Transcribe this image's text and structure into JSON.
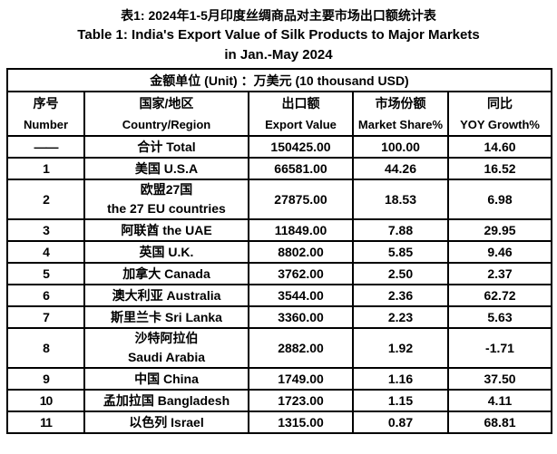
{
  "titles": {
    "zh": "表1: 2024年1-5月印度丝绸商品对主要市场出口额统计表",
    "en_line1": "Table 1: India's Export Value of Silk Products to Major Markets",
    "en_line2": "in Jan.-May 2024"
  },
  "table": {
    "unit_note": "金额单位 (Unit) ：万美元 (10 thousand USD)",
    "headers": [
      {
        "key": "number",
        "zh": "序号",
        "en": "Number"
      },
      {
        "key": "country",
        "zh": "国家/地区",
        "en": "Country/Region"
      },
      {
        "key": "export-value",
        "zh": "出口额",
        "en": "Export Value"
      },
      {
        "key": "market-share",
        "zh": "市场份额",
        "en": "Market Share%"
      },
      {
        "key": "yoy-growth",
        "zh": "同比",
        "en": "YOY Growth%"
      }
    ],
    "rows": [
      {
        "number": "——",
        "country": "合计 Total",
        "export_value": "150425.00",
        "market_share": "100.00",
        "yoy_growth": "14.60"
      },
      {
        "number": "1",
        "country": "美国 U.S.A",
        "export_value": "66581.00",
        "market_share": "44.26",
        "yoy_growth": "16.52"
      },
      {
        "number": "2",
        "country": "欧盟27国\nthe 27 EU countries",
        "export_value": "27875.00",
        "market_share": "18.53",
        "yoy_growth": "6.98"
      },
      {
        "number": "3",
        "country": "阿联酋 the UAE",
        "export_value": "11849.00",
        "market_share": "7.88",
        "yoy_growth": "29.95"
      },
      {
        "number": "4",
        "country": "英国 U.K.",
        "export_value": "8802.00",
        "market_share": "5.85",
        "yoy_growth": "9.46"
      },
      {
        "number": "5",
        "country": "加拿大 Canada",
        "export_value": "3762.00",
        "market_share": "2.50",
        "yoy_growth": "2.37"
      },
      {
        "number": "6",
        "country": "澳大利亚 Australia",
        "export_value": "3544.00",
        "market_share": "2.36",
        "yoy_growth": "62.72"
      },
      {
        "number": "7",
        "country": "斯里兰卡 Sri Lanka",
        "export_value": "3360.00",
        "market_share": "2.23",
        "yoy_growth": "5.63"
      },
      {
        "number": "8",
        "country": "沙特阿拉伯\nSaudi Arabia",
        "export_value": "2882.00",
        "market_share": "1.92",
        "yoy_growth": "-1.71"
      },
      {
        "number": "9",
        "country": "中国 China",
        "export_value": "1749.00",
        "market_share": "1.16",
        "yoy_growth": "37.50"
      },
      {
        "number": "10",
        "country": "孟加拉国 Bangladesh",
        "export_value": "1723.00",
        "market_share": "1.15",
        "yoy_growth": "4.11"
      },
      {
        "number": "11",
        "country": "以色列 Israel",
        "export_value": "1315.00",
        "market_share": "0.87",
        "yoy_growth": "68.81"
      }
    ]
  },
  "chart_data": {
    "type": "table",
    "title": "表1: 2024年1-5月印度丝绸商品对主要市场出口额统计表 / Table 1: India's Export Value of Silk Products to Major Markets in Jan.-May 2024",
    "unit": "万美元 (10 thousand USD)",
    "columns": [
      "序号 Number",
      "国家/地区 Country/Region",
      "出口额 Export Value",
      "市场份额 Market Share%",
      "同比 YOY Growth%"
    ],
    "rows": [
      [
        "——",
        "合计 Total",
        150425.0,
        100.0,
        14.6
      ],
      [
        1,
        "美国 U.S.A",
        66581.0,
        44.26,
        16.52
      ],
      [
        2,
        "欧盟27国 the 27 EU countries",
        27875.0,
        18.53,
        6.98
      ],
      [
        3,
        "阿联酋 the UAE",
        11849.0,
        7.88,
        29.95
      ],
      [
        4,
        "英国 U.K.",
        8802.0,
        5.85,
        9.46
      ],
      [
        5,
        "加拿大 Canada",
        3762.0,
        2.5,
        2.37
      ],
      [
        6,
        "澳大利亚 Australia",
        3544.0,
        2.36,
        62.72
      ],
      [
        7,
        "斯里兰卡 Sri Lanka",
        3360.0,
        2.23,
        5.63
      ],
      [
        8,
        "沙特阿拉伯 Saudi Arabia",
        2882.0,
        1.92,
        -1.71
      ],
      [
        9,
        "中国 China",
        1749.0,
        1.16,
        37.5
      ],
      [
        10,
        "孟加拉国 Bangladesh",
        1723.0,
        1.15,
        4.11
      ],
      [
        11,
        "以色列 Israel",
        1315.0,
        0.87,
        68.81
      ]
    ],
    "colors": {
      "text": "#000000",
      "background": "#ffffff",
      "border": "#000000"
    }
  }
}
